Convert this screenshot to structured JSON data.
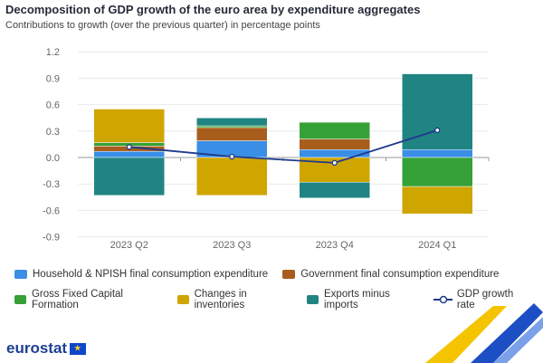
{
  "title": "Decomposition of GDP growth of the euro area by expenditure aggregates",
  "subtitle": "Contributions to growth (over the previous quarter) in percentage points",
  "brand": "eurostat",
  "chart_data": {
    "type": "bar",
    "stacked": true,
    "categories": [
      "2023 Q2",
      "2023 Q3",
      "2023 Q4",
      "2024 Q1"
    ],
    "ylim": [
      -0.9,
      1.2
    ],
    "yticks": [
      1.2,
      0.9,
      0.6,
      0.3,
      0.0,
      -0.3,
      -0.6,
      -0.9
    ],
    "ytick_labels": [
      "1.2",
      "0.9",
      "0.6",
      "0.3",
      "0.0",
      "-0.3",
      "-0.6",
      "-0.9"
    ],
    "grid": true,
    "legend_position": "bottom",
    "series": [
      {
        "name": "Household & NPISH final consumption expenditure",
        "color": "#3a8ee6",
        "values": [
          0.07,
          0.19,
          0.09,
          0.09
        ]
      },
      {
        "name": "Government final consumption expenditure",
        "color": "#a85d1c",
        "values": [
          0.06,
          0.15,
          0.12,
          0.0
        ]
      },
      {
        "name": "Gross Fixed Capital Formation",
        "color": "#36a136",
        "values": [
          0.04,
          0.02,
          0.19,
          -0.33
        ]
      },
      {
        "name": "Changes in inventories",
        "color": "#cfa500",
        "values": [
          0.38,
          -0.43,
          -0.28,
          -0.31
        ]
      },
      {
        "name": "Exports minus imports",
        "color": "#208482",
        "values": [
          -0.43,
          0.09,
          -0.18,
          0.86
        ]
      }
    ],
    "line": {
      "name": "GDP growth rate",
      "color": "#1e3a8a",
      "values": [
        0.12,
        0.01,
        -0.06,
        0.31
      ]
    }
  }
}
